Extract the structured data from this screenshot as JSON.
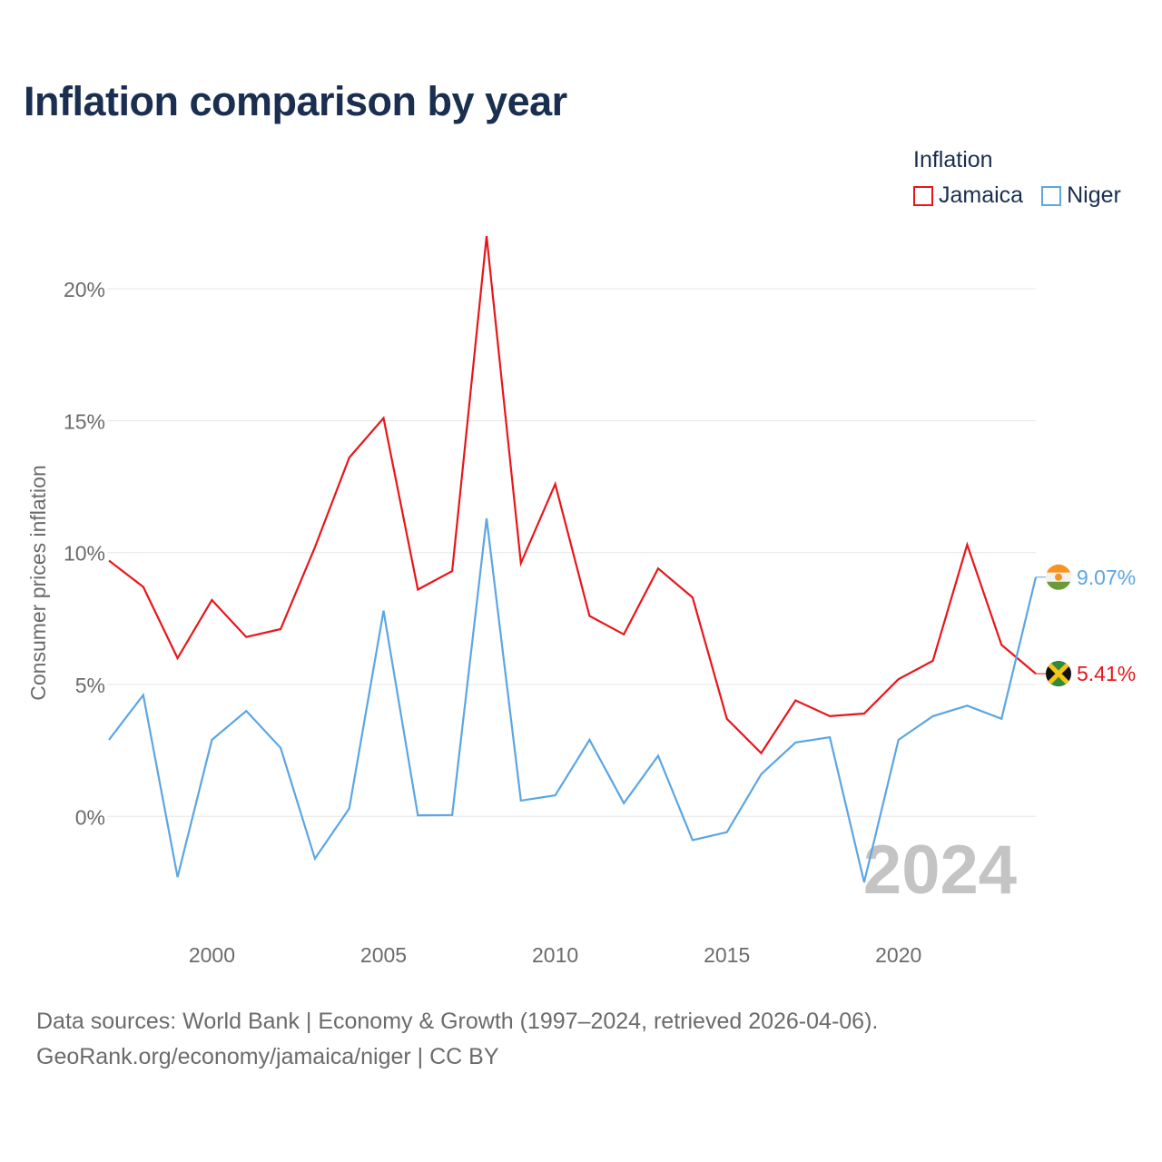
{
  "title": "Inflation comparison by year",
  "legend": {
    "title": "Inflation",
    "items": [
      {
        "name": "Jamaica",
        "color": "#e8161b"
      },
      {
        "name": "Niger",
        "color": "#5ba6e3"
      }
    ]
  },
  "chart_data": {
    "type": "line",
    "ylabel": "Consumer prices inflation",
    "xlabel": "",
    "xlim": [
      1997,
      2024
    ],
    "ylim": [
      -3.5,
      23
    ],
    "x_ticks": [
      2000,
      2005,
      2010,
      2015,
      2020
    ],
    "x_tick_labels": [
      "2000",
      "2005",
      "2010",
      "2015",
      "2020"
    ],
    "y_ticks": [
      0,
      5,
      10,
      15,
      20
    ],
    "y_tick_labels": [
      "0%",
      "5%",
      "10%",
      "15%",
      "20%"
    ],
    "grid": true,
    "watermark_year": "2024",
    "x": [
      1997,
      1998,
      1999,
      2000,
      2001,
      2002,
      2003,
      2004,
      2005,
      2006,
      2007,
      2008,
      2009,
      2010,
      2011,
      2012,
      2013,
      2014,
      2015,
      2016,
      2017,
      2018,
      2019,
      2020,
      2021,
      2022,
      2023,
      2024
    ],
    "series": [
      {
        "name": "Jamaica",
        "color": "#e8161b",
        "end_label": "5.41%",
        "flag": "jamaica",
        "values": [
          9.7,
          8.7,
          6.0,
          8.2,
          6.8,
          7.1,
          10.2,
          13.6,
          15.1,
          8.6,
          9.3,
          22.0,
          9.6,
          12.6,
          7.6,
          6.9,
          9.4,
          8.3,
          3.7,
          2.4,
          4.4,
          3.8,
          3.9,
          5.2,
          5.9,
          10.3,
          6.5,
          5.41
        ]
      },
      {
        "name": "Niger",
        "color": "#5ba6e3",
        "end_label": "9.07%",
        "flag": "niger",
        "values": [
          2.9,
          4.6,
          -2.3,
          2.9,
          4.0,
          2.6,
          -1.6,
          0.3,
          7.8,
          0.04,
          0.05,
          11.3,
          0.6,
          0.8,
          2.9,
          0.5,
          2.3,
          -0.9,
          -0.6,
          1.6,
          2.8,
          3.0,
          -2.5,
          2.9,
          3.8,
          4.2,
          3.7,
          9.07
        ]
      }
    ]
  },
  "footer": {
    "line1": "Data sources: World Bank | Economy & Growth (1997–2024, retrieved 2026-04-06).",
    "line2": "GeoRank.org/economy/jamaica/niger | CC BY"
  }
}
